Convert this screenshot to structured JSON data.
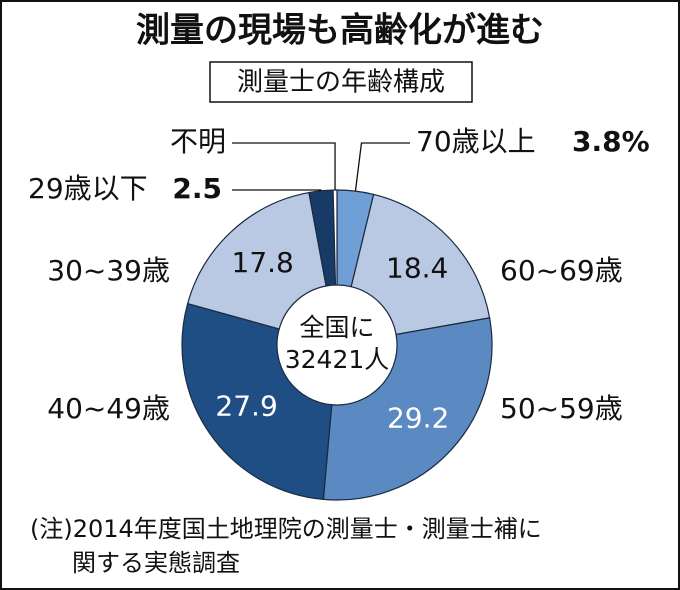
{
  "chart_data": {
    "type": "donut",
    "title": "測量の現場も高齢化が進む",
    "subtitle": "測量士の年齢構成",
    "center_label": [
      "全国に",
      "32421人"
    ],
    "categories": [
      "70歳以上",
      "60~69歳",
      "50~59歳",
      "40~49歳",
      "30~39歳",
      "29歳以下",
      "不明"
    ],
    "values": [
      3.8,
      18.4,
      29.2,
      27.9,
      17.8,
      2.5,
      0.4
    ],
    "value_labels": [
      "3.8%",
      "18.4",
      "29.2",
      "27.9",
      "17.8",
      "2.5",
      null
    ],
    "colors": [
      "#6f9fd4",
      "#b9c9e3",
      "#5b89c2",
      "#1f4e85",
      "#b9c9e3",
      "#173a66",
      "#ffffff"
    ],
    "note": [
      "(注)2014年度国土地理院の測量士・測量士補に",
      "関する実態調査"
    ]
  }
}
